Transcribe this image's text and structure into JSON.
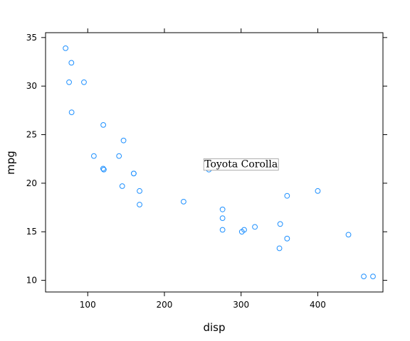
{
  "chart_data": {
    "type": "scatter",
    "xlabel": "disp",
    "ylabel": "mpg",
    "xlim": [
      45,
      485
    ],
    "ylim": [
      8.8,
      35.5
    ],
    "xticks": [
      100,
      200,
      300,
      400
    ],
    "yticks": [
      10,
      15,
      20,
      25,
      30,
      35
    ],
    "grid": false,
    "point_color": "#1e90ff",
    "points": [
      {
        "x": 71.1,
        "y": 33.9
      },
      {
        "x": 75.7,
        "y": 30.4
      },
      {
        "x": 78.7,
        "y": 32.4
      },
      {
        "x": 79.0,
        "y": 27.3
      },
      {
        "x": 95.1,
        "y": 30.4
      },
      {
        "x": 108.0,
        "y": 22.8
      },
      {
        "x": 120.1,
        "y": 21.5
      },
      {
        "x": 120.3,
        "y": 26.0
      },
      {
        "x": 121.0,
        "y": 21.4
      },
      {
        "x": 140.8,
        "y": 22.8
      },
      {
        "x": 146.7,
        "y": 24.4
      },
      {
        "x": 145.0,
        "y": 19.7
      },
      {
        "x": 160.0,
        "y": 21.0
      },
      {
        "x": 160.0,
        "y": 21.0
      },
      {
        "x": 167.6,
        "y": 19.2
      },
      {
        "x": 167.6,
        "y": 17.8
      },
      {
        "x": 225.0,
        "y": 18.1
      },
      {
        "x": 258.0,
        "y": 21.4
      },
      {
        "x": 275.8,
        "y": 16.4
      },
      {
        "x": 275.8,
        "y": 17.3
      },
      {
        "x": 275.8,
        "y": 15.2
      },
      {
        "x": 301.0,
        "y": 15.0
      },
      {
        "x": 304.0,
        "y": 15.2
      },
      {
        "x": 318.0,
        "y": 15.5
      },
      {
        "x": 350.0,
        "y": 13.3
      },
      {
        "x": 351.0,
        "y": 15.8
      },
      {
        "x": 360.0,
        "y": 18.7
      },
      {
        "x": 360.0,
        "y": 14.3
      },
      {
        "x": 400.0,
        "y": 19.2
      },
      {
        "x": 440.0,
        "y": 14.7
      },
      {
        "x": 460.0,
        "y": 10.4
      },
      {
        "x": 472.0,
        "y": 10.4
      }
    ],
    "annotations": [
      {
        "text": "Toyota Corolla",
        "x": 300,
        "y": 22.0
      }
    ]
  }
}
